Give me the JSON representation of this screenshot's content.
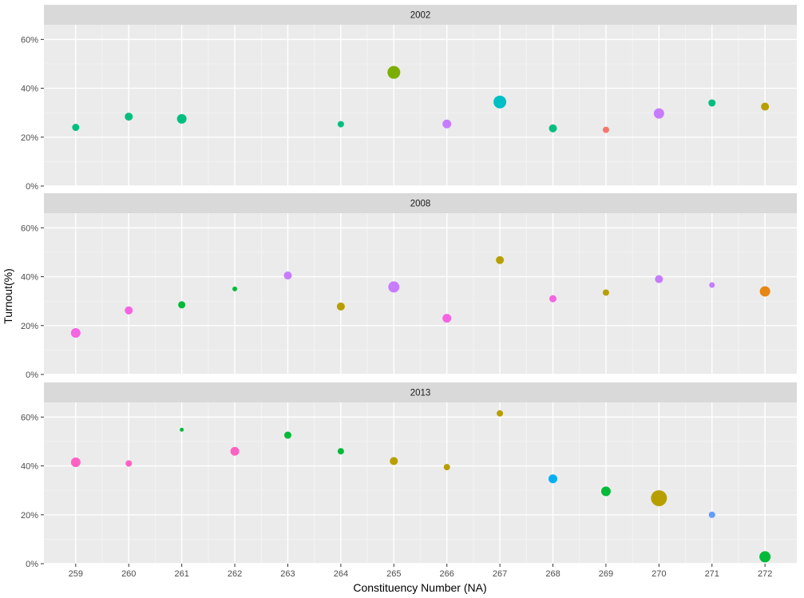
{
  "chart_data": {
    "type": "scatter",
    "xlabel": "Constituency Number (NA)",
    "ylabel": "Turnout(%)",
    "x_ticks": [
      "259",
      "260",
      "261",
      "262",
      "263",
      "264",
      "265",
      "266",
      "267",
      "268",
      "269",
      "270",
      "271",
      "272"
    ],
    "xlim": [
      258.4,
      272.6
    ],
    "ylim": [
      0,
      0.66
    ],
    "y_ticks": [
      0,
      0.2,
      0.4,
      0.6
    ],
    "y_tick_labels": [
      "0%",
      "20%",
      "40%",
      "60%"
    ],
    "grid": true,
    "facets": [
      {
        "label": "2002",
        "points": [
          {
            "x": 259,
            "y": 0.24,
            "size": 4.5,
            "color": "#00BF7D"
          },
          {
            "x": 260,
            "y": 0.284,
            "size": 5,
            "color": "#00BF7D"
          },
          {
            "x": 261,
            "y": 0.275,
            "size": 6,
            "color": "#00BF7D"
          },
          {
            "x": 264,
            "y": 0.253,
            "size": 4,
            "color": "#00BF7D"
          },
          {
            "x": 265,
            "y": 0.465,
            "size": 8,
            "color": "#7CAE00"
          },
          {
            "x": 266,
            "y": 0.254,
            "size": 5.5,
            "color": "#C77CFF"
          },
          {
            "x": 267,
            "y": 0.344,
            "size": 8,
            "color": "#00BFC4"
          },
          {
            "x": 268,
            "y": 0.236,
            "size": 5,
            "color": "#00BF7D"
          },
          {
            "x": 269,
            "y": 0.23,
            "size": 4,
            "color": "#F8766D"
          },
          {
            "x": 270,
            "y": 0.297,
            "size": 6.5,
            "color": "#C77CFF"
          },
          {
            "x": 271,
            "y": 0.34,
            "size": 4.5,
            "color": "#00BF7D"
          },
          {
            "x": 272,
            "y": 0.325,
            "size": 5,
            "color": "#B79F00"
          }
        ]
      },
      {
        "label": "2008",
        "points": [
          {
            "x": 259,
            "y": 0.17,
            "size": 6,
            "color": "#F564E3"
          },
          {
            "x": 260,
            "y": 0.262,
            "size": 5,
            "color": "#F564E3"
          },
          {
            "x": 261,
            "y": 0.285,
            "size": 4.5,
            "color": "#00BA38"
          },
          {
            "x": 262,
            "y": 0.35,
            "size": 3,
            "color": "#00BA38"
          },
          {
            "x": 263,
            "y": 0.405,
            "size": 5,
            "color": "#C77CFF"
          },
          {
            "x": 264,
            "y": 0.278,
            "size": 5,
            "color": "#B79F00"
          },
          {
            "x": 265,
            "y": 0.358,
            "size": 7,
            "color": "#C77CFF"
          },
          {
            "x": 266,
            "y": 0.23,
            "size": 5.5,
            "color": "#F564E3"
          },
          {
            "x": 267,
            "y": 0.468,
            "size": 5,
            "color": "#B79F00"
          },
          {
            "x": 268,
            "y": 0.31,
            "size": 4.5,
            "color": "#F564E3"
          },
          {
            "x": 269,
            "y": 0.335,
            "size": 4,
            "color": "#B79F00"
          },
          {
            "x": 270,
            "y": 0.39,
            "size": 5,
            "color": "#C77CFF"
          },
          {
            "x": 271,
            "y": 0.366,
            "size": 3.5,
            "color": "#C77CFF"
          },
          {
            "x": 272,
            "y": 0.34,
            "size": 6.5,
            "color": "#E68613"
          }
        ]
      },
      {
        "label": "2013",
        "points": [
          {
            "x": 259,
            "y": 0.415,
            "size": 6,
            "color": "#FF61C3"
          },
          {
            "x": 260,
            "y": 0.41,
            "size": 4,
            "color": "#FF61C3"
          },
          {
            "x": 261,
            "y": 0.548,
            "size": 2.5,
            "color": "#00BA38"
          },
          {
            "x": 262,
            "y": 0.46,
            "size": 5.5,
            "color": "#FF61C3"
          },
          {
            "x": 263,
            "y": 0.526,
            "size": 4.5,
            "color": "#00BA38"
          },
          {
            "x": 264,
            "y": 0.46,
            "size": 4,
            "color": "#00BA38"
          },
          {
            "x": 265,
            "y": 0.42,
            "size": 5,
            "color": "#B79F00"
          },
          {
            "x": 266,
            "y": 0.395,
            "size": 4,
            "color": "#B79F00"
          },
          {
            "x": 267,
            "y": 0.615,
            "size": 4,
            "color": "#B79F00"
          },
          {
            "x": 268,
            "y": 0.347,
            "size": 5.5,
            "color": "#00B0F6"
          },
          {
            "x": 269,
            "y": 0.296,
            "size": 6,
            "color": "#00BA38"
          },
          {
            "x": 270,
            "y": 0.268,
            "size": 10,
            "color": "#B79F00"
          },
          {
            "x": 271,
            "y": 0.2,
            "size": 4,
            "color": "#619CFF"
          },
          {
            "x": 272,
            "y": 0.028,
            "size": 7,
            "color": "#00BA38"
          }
        ]
      }
    ]
  }
}
